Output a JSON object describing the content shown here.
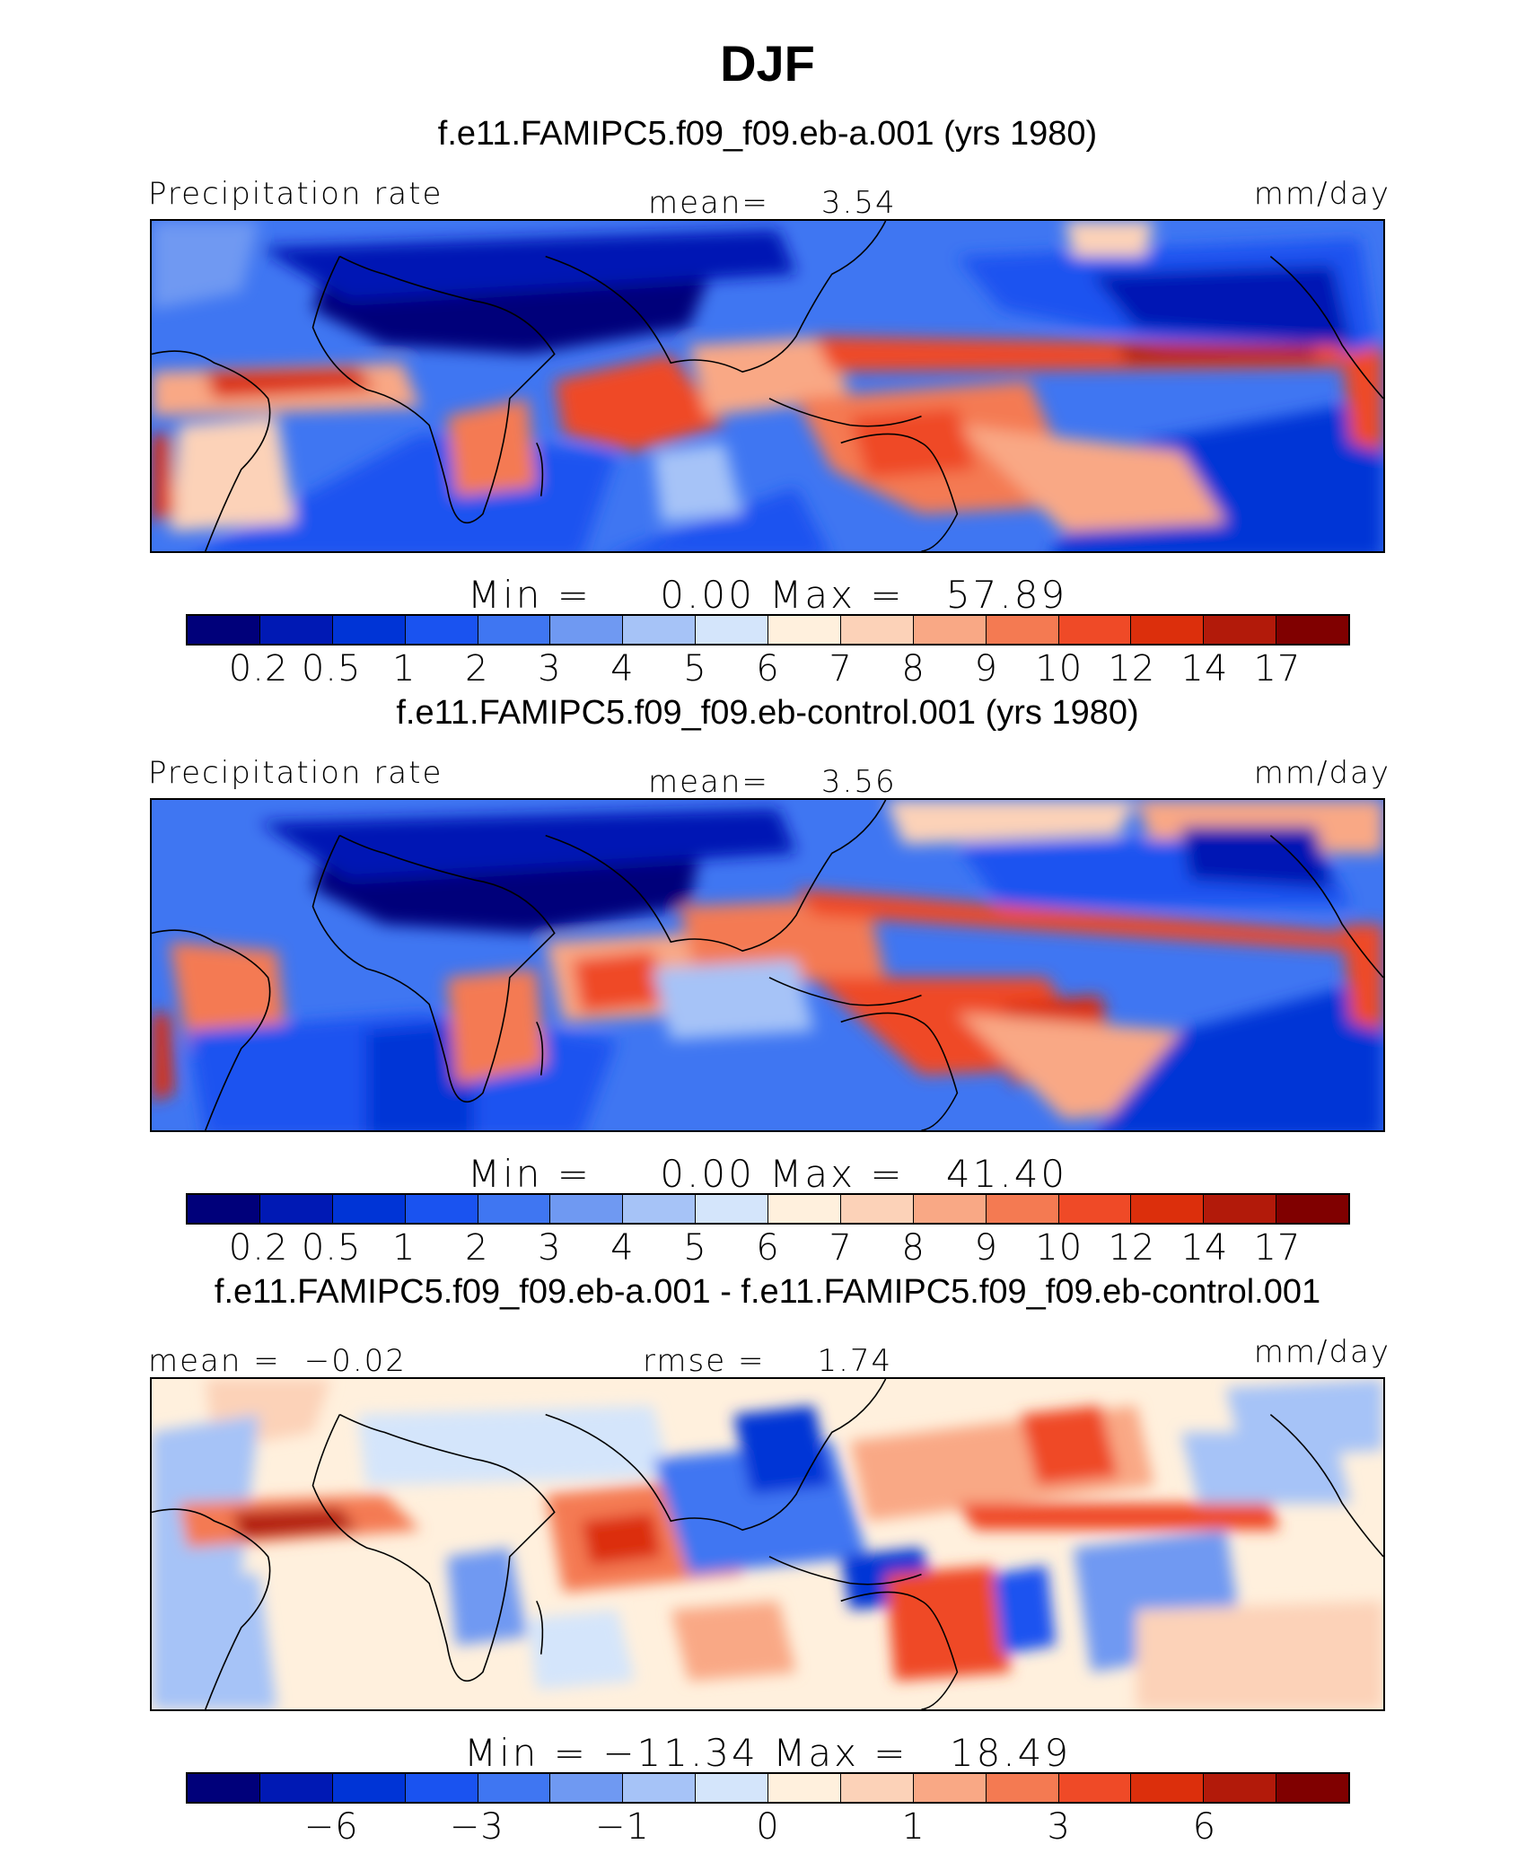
{
  "figure": {
    "title": "DJF"
  },
  "colors": {
    "abs_palette": [
      "#00007a",
      "#0019b4",
      "#0034d6",
      "#1a53f0",
      "#3f76f2",
      "#6f99f2",
      "#a6c3f7",
      "#d4e5fb",
      "#fff0dd",
      "#fcd2b8",
      "#f9a885",
      "#f47a52",
      "#ef4a27",
      "#dc2f0c",
      "#b21a0a",
      "#800000"
    ],
    "diff_palette": [
      "#00007a",
      "#0019b4",
      "#0034d6",
      "#1a53f0",
      "#3f76f2",
      "#6f99f2",
      "#a6c3f7",
      "#d4e5fb",
      "#fff0dd",
      "#fcd2b8",
      "#f9a885",
      "#f47a52",
      "#ef4a27",
      "#dc2f0c",
      "#b21a0a",
      "#800000"
    ]
  },
  "chart_data": [
    {
      "type": "heatmap",
      "title": "f.e11.FAMIPC5.f09_f09.eb-a.001 (yrs 1980)",
      "variable": "Precipitation rate",
      "units": "mm/day",
      "stat_label": "mean=",
      "stat_value": "3.54",
      "min_label": "Min",
      "min_value": "0.00",
      "max_label": "Max",
      "max_value": "57.89",
      "colorbar_levels": [
        "0.2",
        "0.5",
        "1",
        "2",
        "3",
        "4",
        "5",
        "6",
        "7",
        "8",
        "9",
        "10",
        "12",
        "14",
        "17"
      ]
    },
    {
      "type": "heatmap",
      "title": "f.e11.FAMIPC5.f09_f09.eb-control.001 (yrs 1980)",
      "variable": "Precipitation rate",
      "units": "mm/day",
      "stat_label": "mean=",
      "stat_value": "3.56",
      "min_label": "Min",
      "min_value": "0.00",
      "max_label": "Max",
      "max_value": "41.40",
      "colorbar_levels": [
        "0.2",
        "0.5",
        "1",
        "2",
        "3",
        "4",
        "5",
        "6",
        "7",
        "8",
        "9",
        "10",
        "12",
        "14",
        "17"
      ]
    },
    {
      "type": "heatmap",
      "title": "f.e11.FAMIPC5.f09_f09.eb-a.001 - f.e11.FAMIPC5.f09_f09.eb-control.001",
      "units": "mm/day",
      "mean_label": "mean =",
      "mean_value": "−0.02",
      "rmse_label": "rmse =",
      "rmse_value": "1.74",
      "min_label": "Min",
      "min_value": "−11.34",
      "max_label": "Max",
      "max_value": "18.49",
      "colorbar_levels": [
        "−6",
        "−3",
        "−1",
        "0",
        "1",
        "3",
        "6"
      ]
    }
  ]
}
